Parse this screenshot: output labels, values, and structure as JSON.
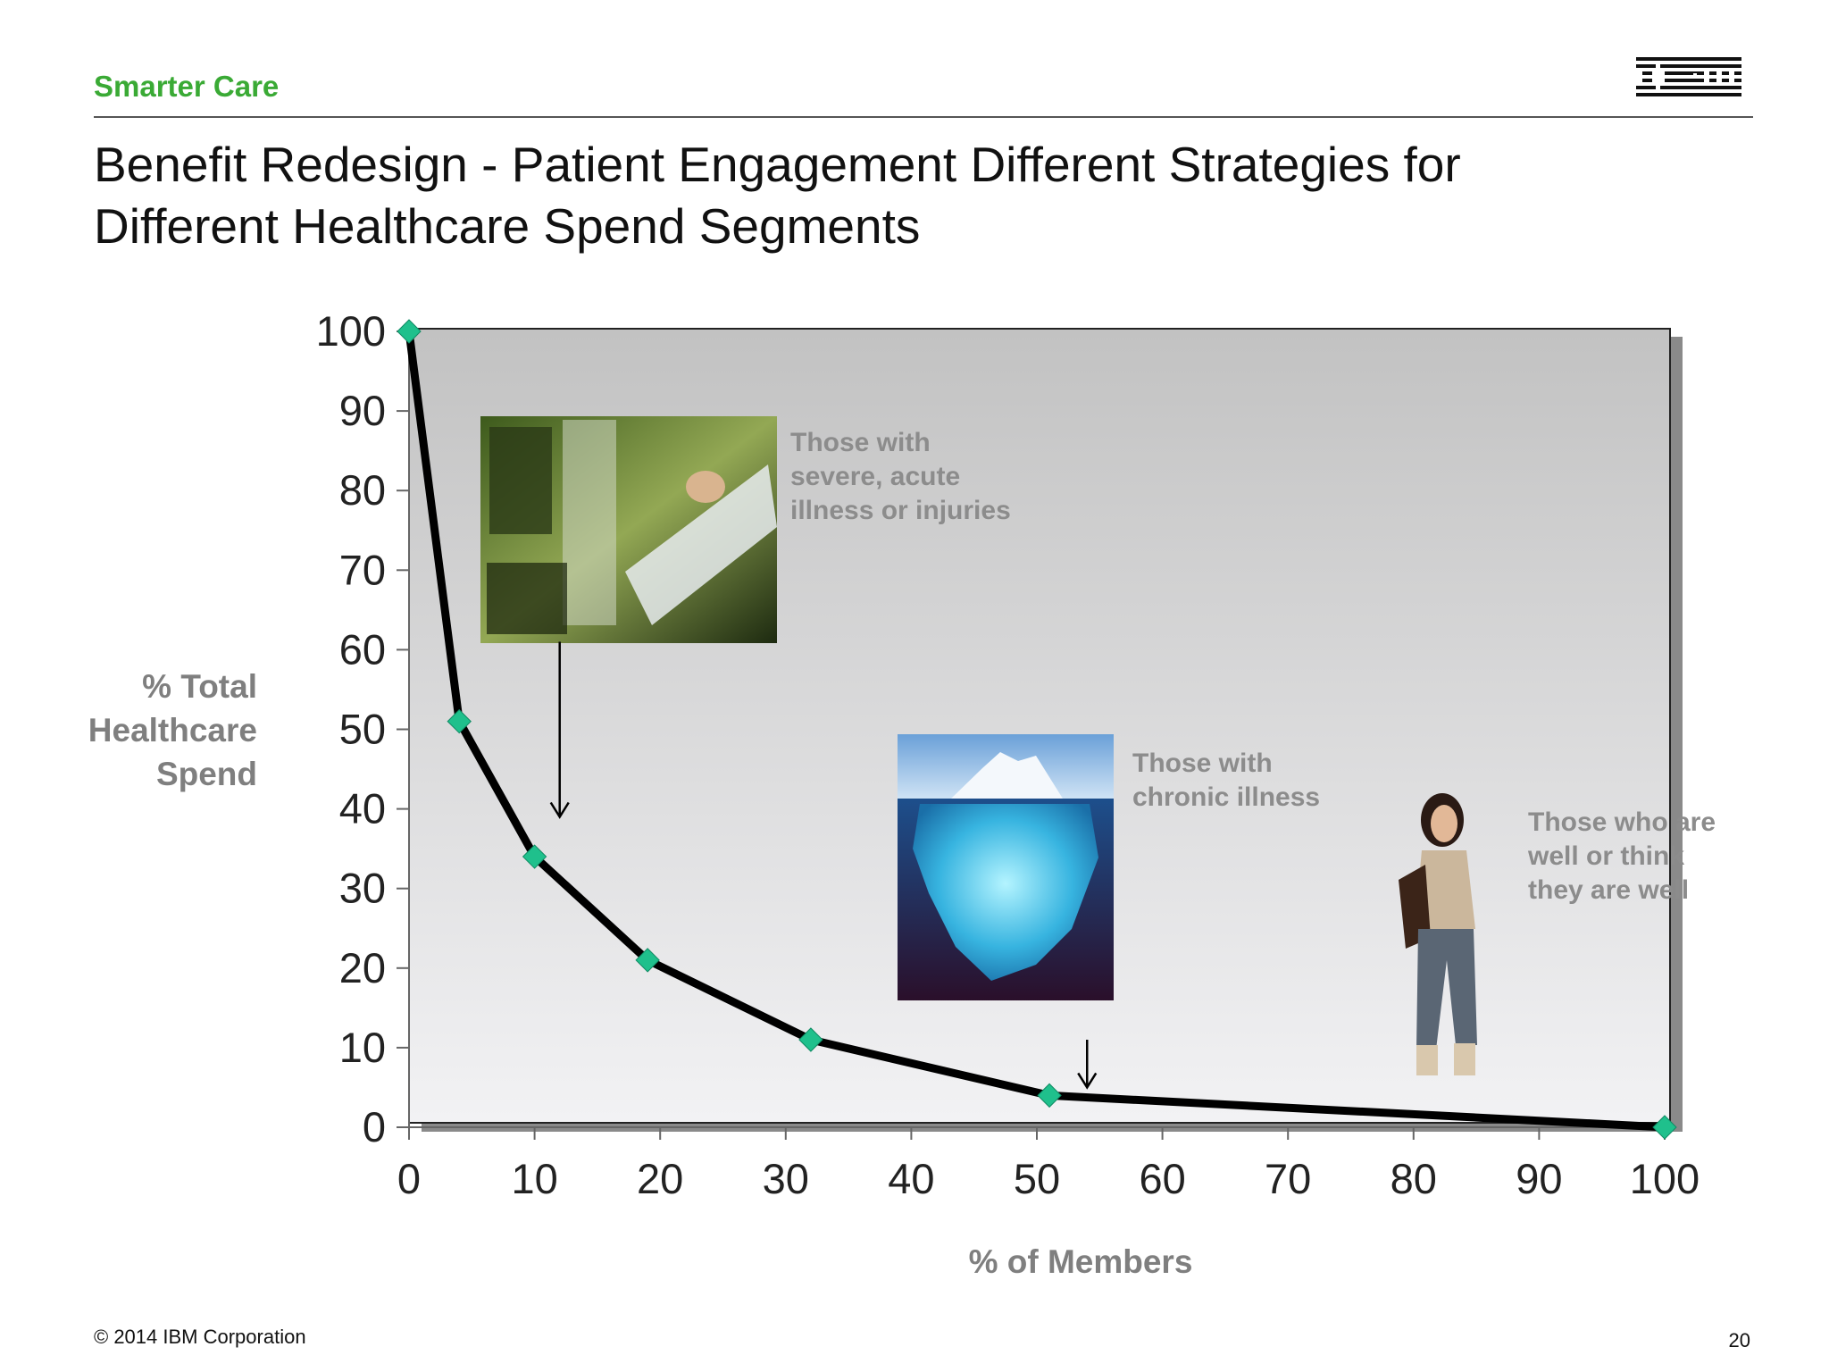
{
  "slide": {
    "header_label": "Smarter Care",
    "logo_text": "IBM",
    "title_line1": "Benefit Redesign  - Patient Engagement  Different Strategies for",
    "title_line2": "Different Healthcare Spend Segments",
    "footer_copyright": "© 2014 IBM Corporation",
    "page_number": "20"
  },
  "chart_data": {
    "type": "line",
    "title": "",
    "xlabel": "% of Members",
    "ylabel_lines": [
      "% Total",
      "Healthcare",
      "Spend"
    ],
    "xlim": [
      0,
      100
    ],
    "ylim": [
      0,
      100
    ],
    "xticks": [
      0,
      10,
      20,
      30,
      40,
      50,
      60,
      70,
      80,
      90,
      100
    ],
    "yticks": [
      0,
      10,
      20,
      30,
      40,
      50,
      60,
      70,
      80,
      90,
      100
    ],
    "grid": false,
    "legend": "none",
    "series": [
      {
        "x": [
          0,
          4,
          10,
          19,
          32,
          51,
          100
        ],
        "y": [
          100,
          51,
          34,
          21,
          11,
          4,
          0
        ],
        "line_color": "#000000",
        "marker_color": "#1fc08c"
      }
    ],
    "annotations": [
      {
        "name": "acute",
        "lines": [
          "Those with",
          "severe, acute",
          "illness or injuries"
        ],
        "image": "hospital-patient-photo",
        "arrow_x": 12,
        "arrow_y_top": 61,
        "arrow_y_bottom": 39
      },
      {
        "name": "chronic",
        "lines": [
          "Those with",
          "chronic illness"
        ],
        "image": "iceberg-photo",
        "arrow_x": 54,
        "arrow_y_top": 11,
        "arrow_y_bottom": 5
      },
      {
        "name": "well",
        "lines": [
          "Those who are",
          "well or think",
          "they are well"
        ],
        "image": "young-woman-on-phone-photo"
      }
    ]
  }
}
